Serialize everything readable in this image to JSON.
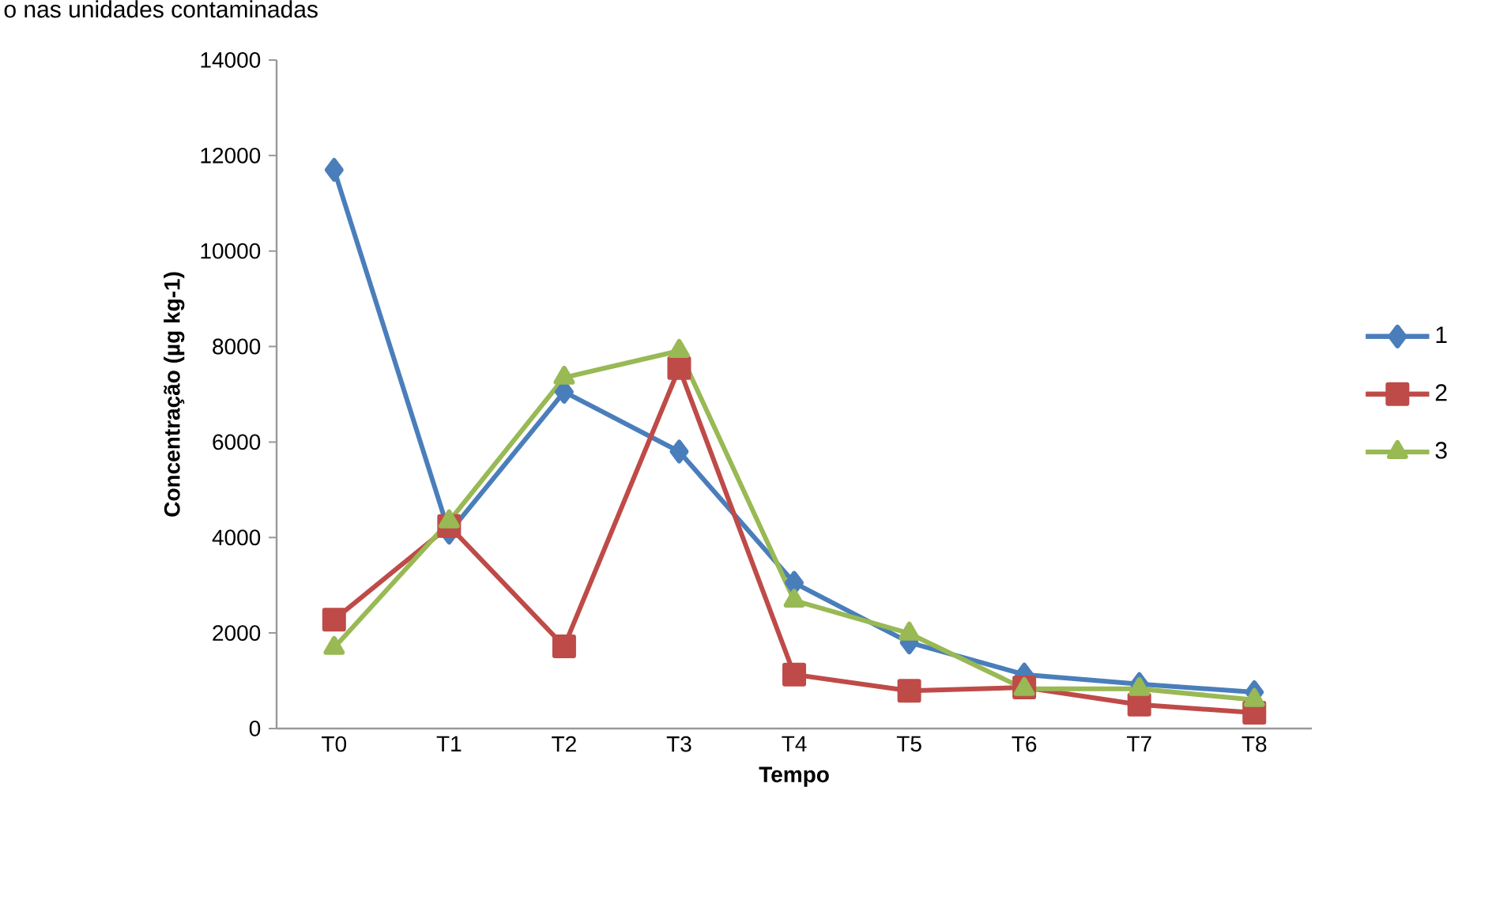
{
  "chart_data": {
    "type": "line",
    "title": "o nas unidades contaminadas",
    "xlabel": "Tempo",
    "ylabel": "Concentração (µg kg-1)",
    "categories": [
      "T0",
      "T1",
      "T2",
      "T3",
      "T4",
      "T5",
      "T6",
      "T7",
      "T8"
    ],
    "series": [
      {
        "name": "1",
        "color": "#4a7ebb",
        "marker": "diamond",
        "values": [
          11700,
          4100,
          7050,
          5800,
          3050,
          1800,
          1130,
          930,
          760
        ]
      },
      {
        "name": "2",
        "color": "#be4b48",
        "marker": "square",
        "values": [
          2280,
          4240,
          1720,
          7550,
          1130,
          790,
          860,
          500,
          330
        ]
      },
      {
        "name": "3",
        "color": "#98b954",
        "marker": "triangle",
        "values": [
          1690,
          4340,
          7350,
          7910,
          2680,
          1990,
          830,
          830,
          600
        ]
      }
    ],
    "ylim": [
      0,
      14000
    ],
    "yticks": [
      0,
      2000,
      4000,
      6000,
      8000,
      10000,
      12000,
      14000
    ],
    "grid": false,
    "legend": "right"
  }
}
